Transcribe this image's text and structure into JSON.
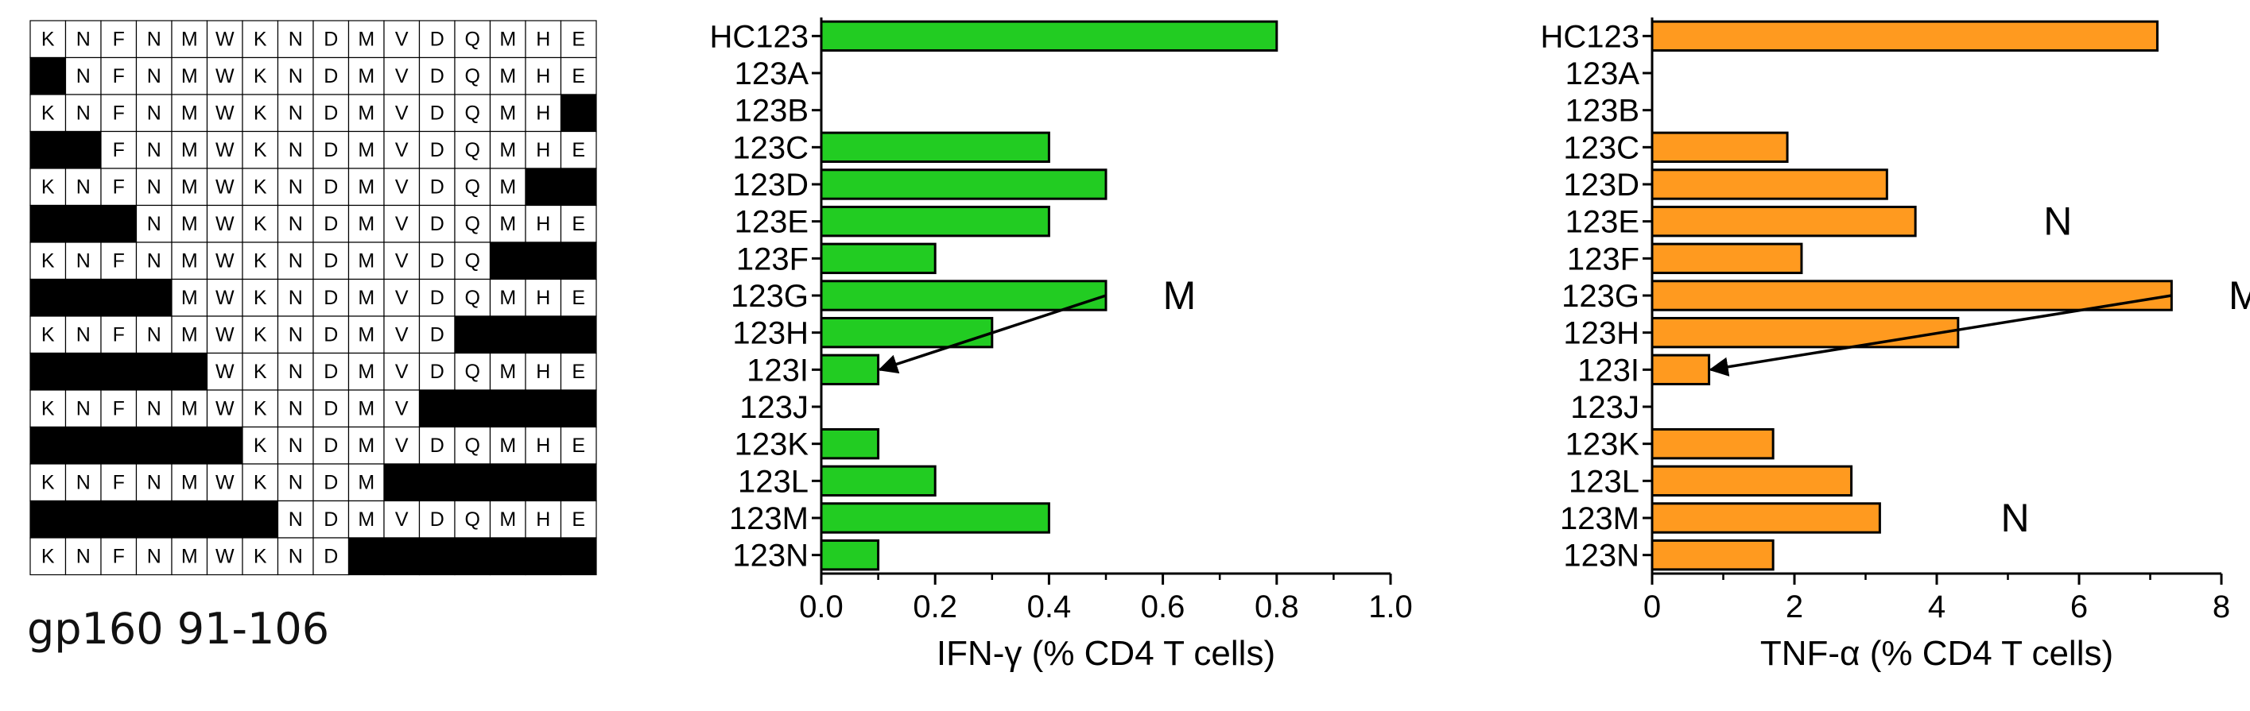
{
  "sequence_grid": {
    "title": "gp160 91-106",
    "sequence": [
      "K",
      "N",
      "F",
      "N",
      "M",
      "W",
      "K",
      "N",
      "D",
      "M",
      "V",
      "D",
      "Q",
      "M",
      "H",
      "E"
    ],
    "rows": [
      {
        "visible_from": 1,
        "visible_to": 16
      },
      {
        "visible_from": 2,
        "visible_to": 16
      },
      {
        "visible_from": 1,
        "visible_to": 15
      },
      {
        "visible_from": 3,
        "visible_to": 16
      },
      {
        "visible_from": 1,
        "visible_to": 14
      },
      {
        "visible_from": 4,
        "visible_to": 16
      },
      {
        "visible_from": 1,
        "visible_to": 13
      },
      {
        "visible_from": 5,
        "visible_to": 16
      },
      {
        "visible_from": 1,
        "visible_to": 12
      },
      {
        "visible_from": 6,
        "visible_to": 16
      },
      {
        "visible_from": 1,
        "visible_to": 11
      },
      {
        "visible_from": 7,
        "visible_to": 16
      },
      {
        "visible_from": 1,
        "visible_to": 10
      },
      {
        "visible_from": 8,
        "visible_to": 16
      },
      {
        "visible_from": 1,
        "visible_to": 9
      }
    ]
  },
  "chart_data": [
    {
      "type": "bar",
      "orientation": "horizontal",
      "categories": [
        "HC123",
        "123A",
        "123B",
        "123C",
        "123D",
        "123E",
        "123F",
        "123G",
        "123H",
        "123I",
        "123J",
        "123K",
        "123L",
        "123M",
        "123N"
      ],
      "values": [
        0.8,
        0,
        0,
        0.4,
        0.5,
        0.4,
        0.2,
        0.5,
        0.3,
        0.1,
        0,
        0.1,
        0.2,
        0.4,
        0.1
      ],
      "xlabel": "IFN-γ (% CD4 T cells)",
      "xlim": [
        0,
        1.0
      ],
      "xticks": [
        "0.0",
        "0.2",
        "0.4",
        "0.6",
        "0.8",
        "1.0"
      ],
      "xtick_values": [
        0,
        0.2,
        0.4,
        0.6,
        0.8,
        1.0
      ],
      "bar_color": "#22cc22",
      "annotations": [
        {
          "text": "M",
          "category": "123G",
          "value": 0.6
        }
      ],
      "arrow": {
        "from_category": "123G",
        "from_value": 0.5,
        "to_category": "123I",
        "to_value": 0.1
      }
    },
    {
      "type": "bar",
      "orientation": "horizontal",
      "categories": [
        "HC123",
        "123A",
        "123B",
        "123C",
        "123D",
        "123E",
        "123F",
        "123G",
        "123H",
        "123I",
        "123J",
        "123K",
        "123L",
        "123M",
        "123N"
      ],
      "values": [
        7.1,
        0,
        0,
        1.9,
        3.3,
        3.7,
        2.1,
        7.3,
        4.3,
        0.8,
        0,
        1.7,
        2.8,
        3.2,
        1.7
      ],
      "xlabel": "TNF-α (% CD4 T cells)",
      "xlim": [
        0,
        8
      ],
      "xticks": [
        "0",
        "2",
        "4",
        "6",
        "8"
      ],
      "xtick_values": [
        0,
        2,
        4,
        6,
        8
      ],
      "bar_color": "#ff9a1f",
      "annotations": [
        {
          "text": "N",
          "category": "123E",
          "value": 5.5
        },
        {
          "text": "M",
          "category": "123G",
          "value": 8.1
        },
        {
          "text": "N",
          "category": "123M",
          "value": 4.9
        }
      ],
      "arrow": {
        "from_category": "123G",
        "from_value": 7.3,
        "to_category": "123I",
        "to_value": 0.8
      }
    }
  ]
}
